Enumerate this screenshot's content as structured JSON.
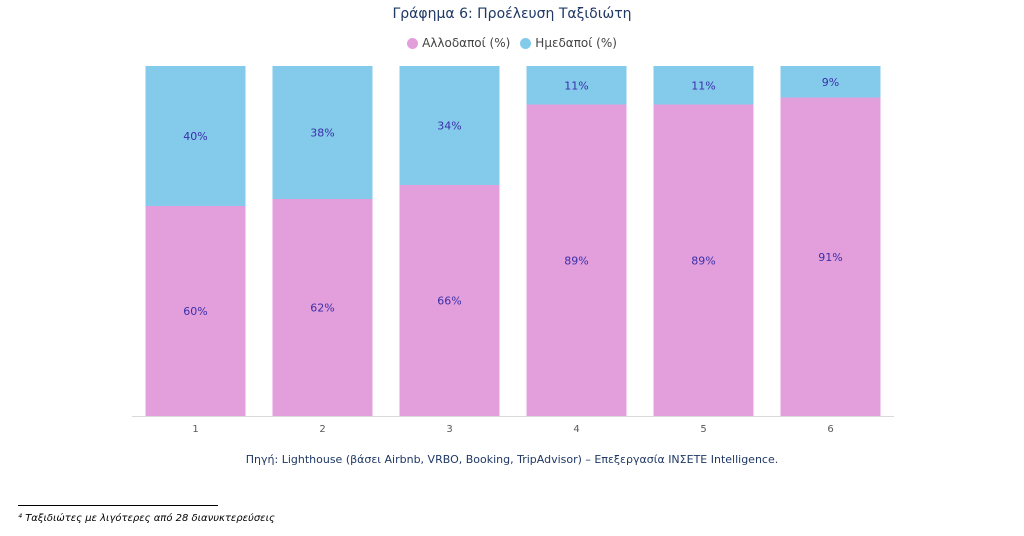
{
  "chart_data": {
    "type": "bar",
    "stacked": true,
    "title": "Γράφημα 6: Προέλευση Ταξιδιώτη",
    "categories": [
      "1",
      "2",
      "3",
      "4",
      "5",
      "6"
    ],
    "series": [
      {
        "name": "Αλλοδαποί (%)",
        "color": "#e39fdc",
        "values": [
          60,
          62,
          66,
          89,
          89,
          91
        ],
        "labels": [
          "60%",
          "62%",
          "66%",
          "89%",
          "89%",
          "91%"
        ]
      },
      {
        "name": "Ημεδαποί (%)",
        "color": "#84cbeb",
        "values": [
          40,
          38,
          34,
          11,
          11,
          9
        ],
        "labels": [
          "40%",
          "38%",
          "34%",
          "11%",
          "11%",
          "9%"
        ]
      }
    ],
    "ylim": [
      0,
      100
    ],
    "legend_position": "top",
    "grid": false,
    "label_color": "#3a2fa8"
  },
  "source": "Πηγή: Lighthouse (βάσει Airbnb, VRBO, Booking, TripAdvisor) – Επεξεργασία ΙΝΣΕΤΕ Intelligence.",
  "footnote": "⁴ Ταξιδιώτες με λιγότερες από 28 διανυκτερεύσεις"
}
